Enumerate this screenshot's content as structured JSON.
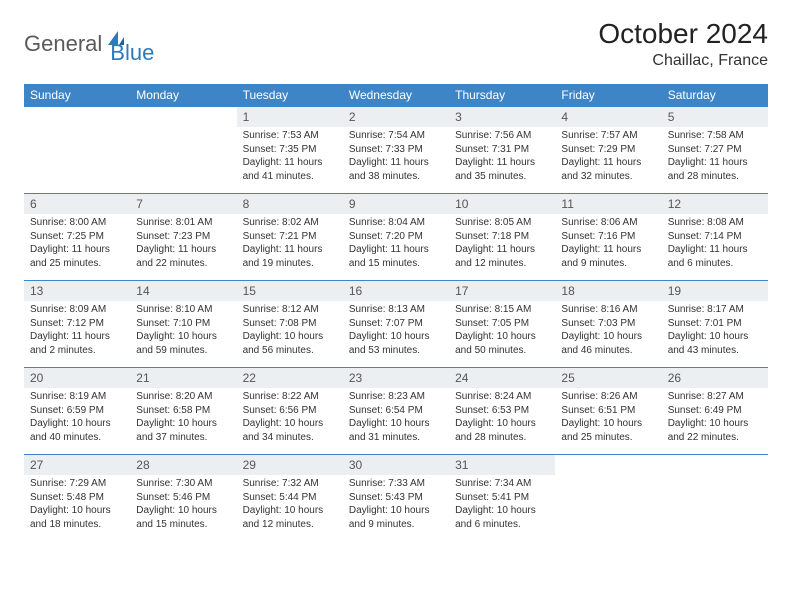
{
  "logo": {
    "part1": "General",
    "part2": "Blue"
  },
  "title": "October 2024",
  "location": "Chaillac, France",
  "colors": {
    "header_bg": "#3d85c6",
    "daynum_bg": "#eceff1",
    "rule": "#3d85c6",
    "logo_gray": "#5a5a5a",
    "logo_blue": "#2a7bbd"
  },
  "dow": [
    "Sunday",
    "Monday",
    "Tuesday",
    "Wednesday",
    "Thursday",
    "Friday",
    "Saturday"
  ],
  "weeks": [
    {
      "nums": [
        "",
        "",
        "1",
        "2",
        "3",
        "4",
        "5"
      ],
      "cells": [
        null,
        null,
        {
          "sr": "Sunrise: 7:53 AM",
          "ss": "Sunset: 7:35 PM",
          "dl": "Daylight: 11 hours and 41 minutes."
        },
        {
          "sr": "Sunrise: 7:54 AM",
          "ss": "Sunset: 7:33 PM",
          "dl": "Daylight: 11 hours and 38 minutes."
        },
        {
          "sr": "Sunrise: 7:56 AM",
          "ss": "Sunset: 7:31 PM",
          "dl": "Daylight: 11 hours and 35 minutes."
        },
        {
          "sr": "Sunrise: 7:57 AM",
          "ss": "Sunset: 7:29 PM",
          "dl": "Daylight: 11 hours and 32 minutes."
        },
        {
          "sr": "Sunrise: 7:58 AM",
          "ss": "Sunset: 7:27 PM",
          "dl": "Daylight: 11 hours and 28 minutes."
        }
      ]
    },
    {
      "nums": [
        "6",
        "7",
        "8",
        "9",
        "10",
        "11",
        "12"
      ],
      "cells": [
        {
          "sr": "Sunrise: 8:00 AM",
          "ss": "Sunset: 7:25 PM",
          "dl": "Daylight: 11 hours and 25 minutes."
        },
        {
          "sr": "Sunrise: 8:01 AM",
          "ss": "Sunset: 7:23 PM",
          "dl": "Daylight: 11 hours and 22 minutes."
        },
        {
          "sr": "Sunrise: 8:02 AM",
          "ss": "Sunset: 7:21 PM",
          "dl": "Daylight: 11 hours and 19 minutes."
        },
        {
          "sr": "Sunrise: 8:04 AM",
          "ss": "Sunset: 7:20 PM",
          "dl": "Daylight: 11 hours and 15 minutes."
        },
        {
          "sr": "Sunrise: 8:05 AM",
          "ss": "Sunset: 7:18 PM",
          "dl": "Daylight: 11 hours and 12 minutes."
        },
        {
          "sr": "Sunrise: 8:06 AM",
          "ss": "Sunset: 7:16 PM",
          "dl": "Daylight: 11 hours and 9 minutes."
        },
        {
          "sr": "Sunrise: 8:08 AM",
          "ss": "Sunset: 7:14 PM",
          "dl": "Daylight: 11 hours and 6 minutes."
        }
      ]
    },
    {
      "nums": [
        "13",
        "14",
        "15",
        "16",
        "17",
        "18",
        "19"
      ],
      "cells": [
        {
          "sr": "Sunrise: 8:09 AM",
          "ss": "Sunset: 7:12 PM",
          "dl": "Daylight: 11 hours and 2 minutes."
        },
        {
          "sr": "Sunrise: 8:10 AM",
          "ss": "Sunset: 7:10 PM",
          "dl": "Daylight: 10 hours and 59 minutes."
        },
        {
          "sr": "Sunrise: 8:12 AM",
          "ss": "Sunset: 7:08 PM",
          "dl": "Daylight: 10 hours and 56 minutes."
        },
        {
          "sr": "Sunrise: 8:13 AM",
          "ss": "Sunset: 7:07 PM",
          "dl": "Daylight: 10 hours and 53 minutes."
        },
        {
          "sr": "Sunrise: 8:15 AM",
          "ss": "Sunset: 7:05 PM",
          "dl": "Daylight: 10 hours and 50 minutes."
        },
        {
          "sr": "Sunrise: 8:16 AM",
          "ss": "Sunset: 7:03 PM",
          "dl": "Daylight: 10 hours and 46 minutes."
        },
        {
          "sr": "Sunrise: 8:17 AM",
          "ss": "Sunset: 7:01 PM",
          "dl": "Daylight: 10 hours and 43 minutes."
        }
      ]
    },
    {
      "nums": [
        "20",
        "21",
        "22",
        "23",
        "24",
        "25",
        "26"
      ],
      "cells": [
        {
          "sr": "Sunrise: 8:19 AM",
          "ss": "Sunset: 6:59 PM",
          "dl": "Daylight: 10 hours and 40 minutes."
        },
        {
          "sr": "Sunrise: 8:20 AM",
          "ss": "Sunset: 6:58 PM",
          "dl": "Daylight: 10 hours and 37 minutes."
        },
        {
          "sr": "Sunrise: 8:22 AM",
          "ss": "Sunset: 6:56 PM",
          "dl": "Daylight: 10 hours and 34 minutes."
        },
        {
          "sr": "Sunrise: 8:23 AM",
          "ss": "Sunset: 6:54 PM",
          "dl": "Daylight: 10 hours and 31 minutes."
        },
        {
          "sr": "Sunrise: 8:24 AM",
          "ss": "Sunset: 6:53 PM",
          "dl": "Daylight: 10 hours and 28 minutes."
        },
        {
          "sr": "Sunrise: 8:26 AM",
          "ss": "Sunset: 6:51 PM",
          "dl": "Daylight: 10 hours and 25 minutes."
        },
        {
          "sr": "Sunrise: 8:27 AM",
          "ss": "Sunset: 6:49 PM",
          "dl": "Daylight: 10 hours and 22 minutes."
        }
      ]
    },
    {
      "nums": [
        "27",
        "28",
        "29",
        "30",
        "31",
        "",
        ""
      ],
      "cells": [
        {
          "sr": "Sunrise: 7:29 AM",
          "ss": "Sunset: 5:48 PM",
          "dl": "Daylight: 10 hours and 18 minutes."
        },
        {
          "sr": "Sunrise: 7:30 AM",
          "ss": "Sunset: 5:46 PM",
          "dl": "Daylight: 10 hours and 15 minutes."
        },
        {
          "sr": "Sunrise: 7:32 AM",
          "ss": "Sunset: 5:44 PM",
          "dl": "Daylight: 10 hours and 12 minutes."
        },
        {
          "sr": "Sunrise: 7:33 AM",
          "ss": "Sunset: 5:43 PM",
          "dl": "Daylight: 10 hours and 9 minutes."
        },
        {
          "sr": "Sunrise: 7:34 AM",
          "ss": "Sunset: 5:41 PM",
          "dl": "Daylight: 10 hours and 6 minutes."
        },
        null,
        null
      ]
    }
  ]
}
